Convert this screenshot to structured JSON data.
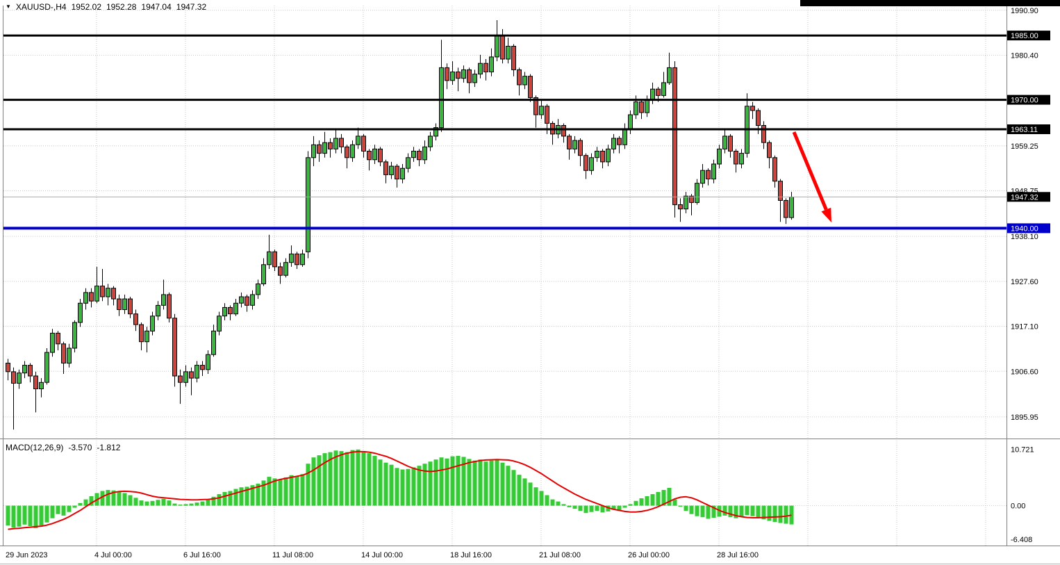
{
  "header": {
    "symbol_period": "XAUUSD-,H4",
    "open": "1952.02",
    "high": "1952.28",
    "low": "1947.04",
    "close": "1947.32"
  },
  "icons": {
    "dropdown_arrow": "▼"
  },
  "colors": {
    "bull": "#3CB540",
    "bear": "#CC443C",
    "outline": "#000000",
    "macd_hist": "#32CD32",
    "macd_signal": "#E60000",
    "grid": "#C8C8C8",
    "axis_text": "#000000",
    "box_text": "#FFFFFF",
    "bid_line": "#A9A9A9",
    "bid_box": "#000000",
    "separator": "#808080",
    "arrow": "#FF0000",
    "top_strip": "#000000"
  },
  "chart_data": {
    "type": "candlestick",
    "symbol": "XAUUSD-",
    "timeframe": "H4",
    "price_axis": {
      "range": [
        1890.9,
        1992.0
      ],
      "grid": [
        1990.9,
        1980.4,
        1969.9,
        1959.25,
        1948.75,
        1938.1,
        1927.6,
        1917.1,
        1906.6,
        1895.95
      ]
    },
    "time_axis": {
      "labels": [
        {
          "i": 0,
          "text": "29 Jun 2023"
        },
        {
          "i": 16,
          "text": "4 Jul 00:00"
        },
        {
          "i": 32,
          "text": "6 Jul 16:00"
        },
        {
          "i": 48,
          "text": "11 Jul 08:00"
        },
        {
          "i": 64,
          "text": "14 Jul 00:00"
        },
        {
          "i": 80,
          "text": "18 Jul 16:00"
        },
        {
          "i": 96,
          "text": "21 Jul 08:00"
        },
        {
          "i": 112,
          "text": "26 Jul 00:00"
        },
        {
          "i": 128,
          "text": "28 Jul 16:00"
        }
      ],
      "grid_indices": [
        16,
        32,
        48,
        64,
        80,
        96,
        112,
        128,
        144,
        160,
        176
      ]
    },
    "hlines": [
      {
        "price": 1985.0,
        "label": "1985.00",
        "color": "#000000",
        "width": 3
      },
      {
        "price": 1970.0,
        "label": "1970.00",
        "color": "#000000",
        "width": 3
      },
      {
        "price": 1963.11,
        "label": "1963.11",
        "color": "#000000",
        "width": 3
      },
      {
        "price": 1940.0,
        "label": "1940.00",
        "color": "#0000CD",
        "width": 4
      }
    ],
    "current_price": {
      "value": 1947.32,
      "label": "1947.32"
    },
    "candles": [
      [
        1908.5,
        1909.5,
        1904.5,
        1906.5
      ],
      [
        1906.5,
        1907.5,
        1893.0,
        1903.8
      ],
      [
        1903.8,
        1907.0,
        1902.5,
        1906.2
      ],
      [
        1906.2,
        1909.0,
        1905.0,
        1908.0
      ],
      [
        1908.0,
        1908.5,
        1904.0,
        1905.5
      ],
      [
        1905.5,
        1906.5,
        1897.0,
        1902.5
      ],
      [
        1902.5,
        1905.0,
        1900.5,
        1904.0
      ],
      [
        1904.0,
        1912.0,
        1903.5,
        1911.0
      ],
      [
        1911.0,
        1916.5,
        1910.0,
        1915.5
      ],
      [
        1915.5,
        1916.0,
        1911.5,
        1913.0
      ],
      [
        1913.0,
        1913.5,
        1906.0,
        1908.5
      ],
      [
        1908.5,
        1913.0,
        1907.5,
        1912.0
      ],
      [
        1912.0,
        1918.5,
        1911.0,
        1918.0
      ],
      [
        1918.0,
        1923.5,
        1917.0,
        1922.5
      ],
      [
        1922.5,
        1926.0,
        1921.0,
        1925.0
      ],
      [
        1925.0,
        1926.0,
        1921.5,
        1923.0
      ],
      [
        1923.0,
        1931.0,
        1922.5,
        1926.5
      ],
      [
        1926.5,
        1930.5,
        1923.0,
        1924.0
      ],
      [
        1924.0,
        1927.0,
        1922.0,
        1926.0
      ],
      [
        1926.0,
        1926.5,
        1922.0,
        1923.5
      ],
      [
        1923.5,
        1924.5,
        1919.5,
        1921.0
      ],
      [
        1921.0,
        1924.5,
        1920.0,
        1923.5
      ],
      [
        1923.5,
        1924.0,
        1919.0,
        1920.0
      ],
      [
        1920.0,
        1921.0,
        1916.0,
        1917.5
      ],
      [
        1917.5,
        1918.0,
        1911.5,
        1913.5
      ],
      [
        1913.5,
        1917.0,
        1911.0,
        1916.0
      ],
      [
        1916.0,
        1920.5,
        1915.0,
        1919.5
      ],
      [
        1919.5,
        1923.0,
        1918.5,
        1922.0
      ],
      [
        1922.0,
        1928.0,
        1921.0,
        1924.5
      ],
      [
        1924.5,
        1925.0,
        1918.0,
        1919.0
      ],
      [
        1919.0,
        1920.0,
        1903.0,
        1905.5
      ],
      [
        1905.5,
        1907.0,
        1899.0,
        1904.0
      ],
      [
        1904.0,
        1908.0,
        1903.0,
        1906.5
      ],
      [
        1906.5,
        1907.5,
        1901.0,
        1905.0
      ],
      [
        1905.0,
        1909.0,
        1904.0,
        1908.0
      ],
      [
        1908.0,
        1909.0,
        1905.5,
        1907.0
      ],
      [
        1907.0,
        1911.5,
        1906.0,
        1910.5
      ],
      [
        1910.5,
        1917.5,
        1910.0,
        1916.0
      ],
      [
        1916.0,
        1920.5,
        1915.0,
        1919.5
      ],
      [
        1919.5,
        1922.5,
        1918.5,
        1921.5
      ],
      [
        1921.5,
        1922.0,
        1918.5,
        1920.0
      ],
      [
        1920.0,
        1923.5,
        1919.5,
        1922.5
      ],
      [
        1922.5,
        1925.0,
        1921.5,
        1924.0
      ],
      [
        1924.0,
        1924.5,
        1920.5,
        1922.0
      ],
      [
        1922.0,
        1925.5,
        1921.0,
        1924.5
      ],
      [
        1924.5,
        1928.0,
        1923.5,
        1927.0
      ],
      [
        1927.0,
        1933.0,
        1926.5,
        1931.5
      ],
      [
        1931.5,
        1938.5,
        1930.5,
        1934.5
      ],
      [
        1934.5,
        1935.0,
        1930.0,
        1931.0
      ],
      [
        1931.0,
        1932.0,
        1927.0,
        1929.0
      ],
      [
        1929.0,
        1933.0,
        1928.5,
        1932.0
      ],
      [
        1932.0,
        1936.0,
        1931.0,
        1934.0
      ],
      [
        1934.0,
        1934.5,
        1930.5,
        1931.5
      ],
      [
        1931.5,
        1935.0,
        1931.0,
        1934.0
      ],
      [
        1934.5,
        1958.0,
        1933.0,
        1956.5
      ],
      [
        1956.5,
        1961.5,
        1954.5,
        1959.5
      ],
      [
        1959.5,
        1960.5,
        1955.5,
        1957.5
      ],
      [
        1957.5,
        1962.5,
        1956.5,
        1960.0
      ],
      [
        1960.0,
        1961.0,
        1956.5,
        1958.5
      ],
      [
        1958.5,
        1963.0,
        1957.5,
        1961.0
      ],
      [
        1961.0,
        1962.0,
        1957.5,
        1959.0
      ],
      [
        1959.0,
        1959.5,
        1954.0,
        1956.5
      ],
      [
        1956.5,
        1960.5,
        1955.5,
        1959.5
      ],
      [
        1959.5,
        1963.5,
        1958.5,
        1961.5
      ],
      [
        1961.5,
        1962.0,
        1956.5,
        1958.0
      ],
      [
        1958.0,
        1958.5,
        1953.5,
        1956.0
      ],
      [
        1956.0,
        1959.5,
        1955.0,
        1958.5
      ],
      [
        1958.5,
        1959.0,
        1954.5,
        1955.5
      ],
      [
        1955.5,
        1956.0,
        1950.5,
        1952.5
      ],
      [
        1952.5,
        1955.5,
        1951.5,
        1954.5
      ],
      [
        1954.5,
        1955.0,
        1949.5,
        1951.5
      ],
      [
        1951.5,
        1955.0,
        1950.5,
        1954.0
      ],
      [
        1954.0,
        1957.5,
        1953.0,
        1956.5
      ],
      [
        1956.5,
        1959.0,
        1955.5,
        1958.0
      ],
      [
        1958.0,
        1958.5,
        1954.5,
        1956.0
      ],
      [
        1956.0,
        1960.5,
        1955.0,
        1959.0
      ],
      [
        1959.0,
        1962.5,
        1958.0,
        1961.5
      ],
      [
        1961.5,
        1964.5,
        1960.5,
        1963.5
      ],
      [
        1963.5,
        1984.0,
        1962.5,
        1977.5
      ],
      [
        1977.5,
        1978.5,
        1972.5,
        1974.5
      ],
      [
        1974.5,
        1979.0,
        1973.5,
        1976.5
      ],
      [
        1976.5,
        1977.5,
        1972.0,
        1975.0
      ],
      [
        1975.0,
        1978.0,
        1974.0,
        1977.0
      ],
      [
        1977.0,
        1977.5,
        1971.5,
        1974.0
      ],
      [
        1974.0,
        1977.0,
        1973.0,
        1976.0
      ],
      [
        1976.0,
        1980.5,
        1975.0,
        1978.5
      ],
      [
        1978.5,
        1979.5,
        1974.5,
        1976.5
      ],
      [
        1976.5,
        1982.0,
        1975.5,
        1980.0
      ],
      [
        1980.0,
        1988.6,
        1979.0,
        1985.0
      ],
      [
        1985.0,
        1986.5,
        1978.5,
        1979.5
      ],
      [
        1979.5,
        1984.5,
        1978.5,
        1982.5
      ],
      [
        1982.5,
        1983.0,
        1975.5,
        1977.0
      ],
      [
        1977.0,
        1977.5,
        1971.0,
        1973.5
      ],
      [
        1973.5,
        1976.5,
        1972.5,
        1975.5
      ],
      [
        1975.5,
        1976.0,
        1969.5,
        1970.5
      ],
      [
        1970.5,
        1971.0,
        1963.5,
        1966.5
      ],
      [
        1966.5,
        1970.0,
        1965.5,
        1968.5
      ],
      [
        1968.5,
        1969.0,
        1962.0,
        1964.5
      ],
      [
        1964.5,
        1965.0,
        1959.5,
        1962.0
      ],
      [
        1962.0,
        1965.5,
        1961.0,
        1964.0
      ],
      [
        1964.0,
        1964.5,
        1960.0,
        1961.5
      ],
      [
        1961.5,
        1962.0,
        1956.0,
        1958.5
      ],
      [
        1958.5,
        1961.5,
        1957.5,
        1960.5
      ],
      [
        1960.5,
        1961.0,
        1954.5,
        1957.0
      ],
      [
        1957.0,
        1957.5,
        1951.5,
        1953.5
      ],
      [
        1953.5,
        1957.5,
        1952.5,
        1956.5
      ],
      [
        1956.5,
        1959.0,
        1955.5,
        1958.0
      ],
      [
        1958.0,
        1958.5,
        1954.0,
        1955.5
      ],
      [
        1955.5,
        1959.5,
        1954.5,
        1958.5
      ],
      [
        1958.5,
        1962.0,
        1957.5,
        1961.0
      ],
      [
        1961.0,
        1961.5,
        1957.5,
        1959.5
      ],
      [
        1959.5,
        1964.5,
        1958.5,
        1963.0
      ],
      [
        1963.0,
        1967.5,
        1962.0,
        1966.5
      ],
      [
        1966.5,
        1971.0,
        1965.5,
        1969.5
      ],
      [
        1969.5,
        1970.0,
        1965.5,
        1967.0
      ],
      [
        1967.0,
        1971.0,
        1966.0,
        1970.0
      ],
      [
        1970.0,
        1974.0,
        1969.0,
        1972.5
      ],
      [
        1972.5,
        1973.0,
        1969.5,
        1971.0
      ],
      [
        1971.0,
        1976.5,
        1970.5,
        1974.0
      ],
      [
        1974.0,
        1981.0,
        1973.5,
        1977.5
      ],
      [
        1977.5,
        1979.0,
        1942.5,
        1945.5
      ],
      [
        1945.5,
        1947.0,
        1941.5,
        1944.5
      ],
      [
        1944.5,
        1948.5,
        1943.5,
        1947.5
      ],
      [
        1947.5,
        1948.0,
        1943.0,
        1946.0
      ],
      [
        1946.0,
        1951.5,
        1945.5,
        1950.5
      ],
      [
        1950.5,
        1955.0,
        1949.5,
        1953.5
      ],
      [
        1953.5,
        1954.0,
        1950.0,
        1951.5
      ],
      [
        1951.5,
        1956.0,
        1950.5,
        1955.0
      ],
      [
        1955.0,
        1959.5,
        1954.0,
        1958.5
      ],
      [
        1958.5,
        1963.0,
        1957.5,
        1961.5
      ],
      [
        1961.5,
        1962.0,
        1956.5,
        1958.0
      ],
      [
        1958.0,
        1958.5,
        1953.0,
        1955.0
      ],
      [
        1955.0,
        1958.5,
        1954.0,
        1957.5
      ],
      [
        1957.5,
        1971.5,
        1956.5,
        1968.5
      ],
      [
        1968.5,
        1969.5,
        1965.5,
        1967.5
      ],
      [
        1967.5,
        1968.0,
        1962.0,
        1964.0
      ],
      [
        1964.0,
        1965.0,
        1958.5,
        1960.0
      ],
      [
        1960.0,
        1960.5,
        1954.0,
        1956.5
      ],
      [
        1956.5,
        1957.0,
        1949.5,
        1951.0
      ],
      [
        1951.0,
        1951.5,
        1941.5,
        1946.5
      ],
      [
        1946.5,
        1947.0,
        1941.0,
        1942.5
      ],
      [
        1942.5,
        1948.5,
        1942.0,
        1947.3
      ]
    ],
    "macd": {
      "title": "MACD(12,26,9)",
      "value_text": "-3.570",
      "signal_text": "-1.812",
      "range": [
        -7.6,
        12.4
      ],
      "axis": [
        {
          "v": 10.721,
          "text": "10.721"
        },
        {
          "v": 0,
          "text": "0.00"
        },
        {
          "v": -6.408,
          "text": "-6.408"
        }
      ],
      "histogram": [
        -3.8,
        -4.2,
        -4.0,
        -3.6,
        -3.9,
        -4.3,
        -3.8,
        -3.2,
        -2.4,
        -1.6,
        -1.9,
        -1.2,
        -0.4,
        0.5,
        1.2,
        1.8,
        2.4,
        2.8,
        3.0,
        2.9,
        2.6,
        2.4,
        2.0,
        1.5,
        1.0,
        0.8,
        0.9,
        1.1,
        1.3,
        1.0,
        0.4,
        0.2,
        0.3,
        0.4,
        0.6,
        0.8,
        1.2,
        1.7,
        2.2,
        2.6,
        2.8,
        3.2,
        3.5,
        3.6,
        3.9,
        4.2,
        4.8,
        5.5,
        5.2,
        5.0,
        5.4,
        5.8,
        5.6,
        6.0,
        8.0,
        9.2,
        9.6,
        10.0,
        10.2,
        10.5,
        10.4,
        10.2,
        10.6,
        10.7,
        10.4,
        10.0,
        9.5,
        8.8,
        8.2,
        7.8,
        7.2,
        6.9,
        7.0,
        7.3,
        7.6,
        8.0,
        8.4,
        8.8,
        9.2,
        9.0,
        9.4,
        9.5,
        9.3,
        8.9,
        8.6,
        8.8,
        8.4,
        8.6,
        8.8,
        8.2,
        7.6,
        6.8,
        5.9,
        5.2,
        4.4,
        3.5,
        2.8,
        2.0,
        1.2,
        0.8,
        0.3,
        -0.3,
        -0.6,
        -1.0,
        -1.4,
        -1.2,
        -1.0,
        -1.3,
        -1.1,
        -0.8,
        -0.9,
        -0.4,
        0.3,
        0.9,
        1.4,
        1.8,
        2.2,
        2.6,
        3.0,
        3.4,
        1.2,
        -0.2,
        -1.0,
        -1.6,
        -2.0,
        -2.2,
        -2.5,
        -2.3,
        -2.1,
        -1.9,
        -2.2,
        -2.4,
        -2.2,
        -1.8,
        -2.0,
        -2.3,
        -2.6,
        -2.9,
        -3.1,
        -3.3,
        -3.45,
        -3.57
      ],
      "signal": [
        -4.5,
        -4.4,
        -4.3,
        -4.2,
        -4.1,
        -4.0,
        -3.9,
        -3.7,
        -3.4,
        -3.0,
        -2.6,
        -2.1,
        -1.5,
        -0.9,
        -0.2,
        0.5,
        1.1,
        1.7,
        2.2,
        2.5,
        2.7,
        2.75,
        2.7,
        2.6,
        2.4,
        2.1,
        1.8,
        1.6,
        1.5,
        1.4,
        1.3,
        1.2,
        1.15,
        1.1,
        1.1,
        1.15,
        1.2,
        1.3,
        1.5,
        1.8,
        2.1,
        2.4,
        2.7,
        3.0,
        3.3,
        3.6,
        3.9,
        4.3,
        4.7,
        5.0,
        5.2,
        5.4,
        5.6,
        5.8,
        6.2,
        6.8,
        7.5,
        8.2,
        8.8,
        9.3,
        9.7,
        10.0,
        10.2,
        10.3,
        10.3,
        10.2,
        10.0,
        9.7,
        9.4,
        9.0,
        8.5,
        8.0,
        7.5,
        7.1,
        6.8,
        6.6,
        6.5,
        6.6,
        6.8,
        7.0,
        7.3,
        7.6,
        7.9,
        8.2,
        8.4,
        8.6,
        8.7,
        8.75,
        8.8,
        8.75,
        8.7,
        8.5,
        8.2,
        7.8,
        7.3,
        6.7,
        6.1,
        5.4,
        4.7,
        4.0,
        3.4,
        2.8,
        2.2,
        1.7,
        1.2,
        0.8,
        0.4,
        0.0,
        -0.4,
        -0.7,
        -0.9,
        -1.1,
        -1.2,
        -1.2,
        -1.1,
        -0.9,
        -0.6,
        -0.2,
        0.3,
        0.8,
        1.3,
        1.6,
        1.7,
        1.5,
        1.1,
        0.6,
        0.1,
        -0.4,
        -0.9,
        -1.3,
        -1.6,
        -1.9,
        -2.1,
        -2.25,
        -2.3,
        -2.3,
        -2.25,
        -2.2,
        -2.15,
        -2.1,
        -2.0,
        -1.81
      ]
    },
    "annotations": [
      {
        "type": "arrow",
        "color": "#FF0000",
        "width": 5,
        "from": [
          1143,
          190
        ],
        "to": [
          1197,
          320
        ]
      }
    ]
  }
}
